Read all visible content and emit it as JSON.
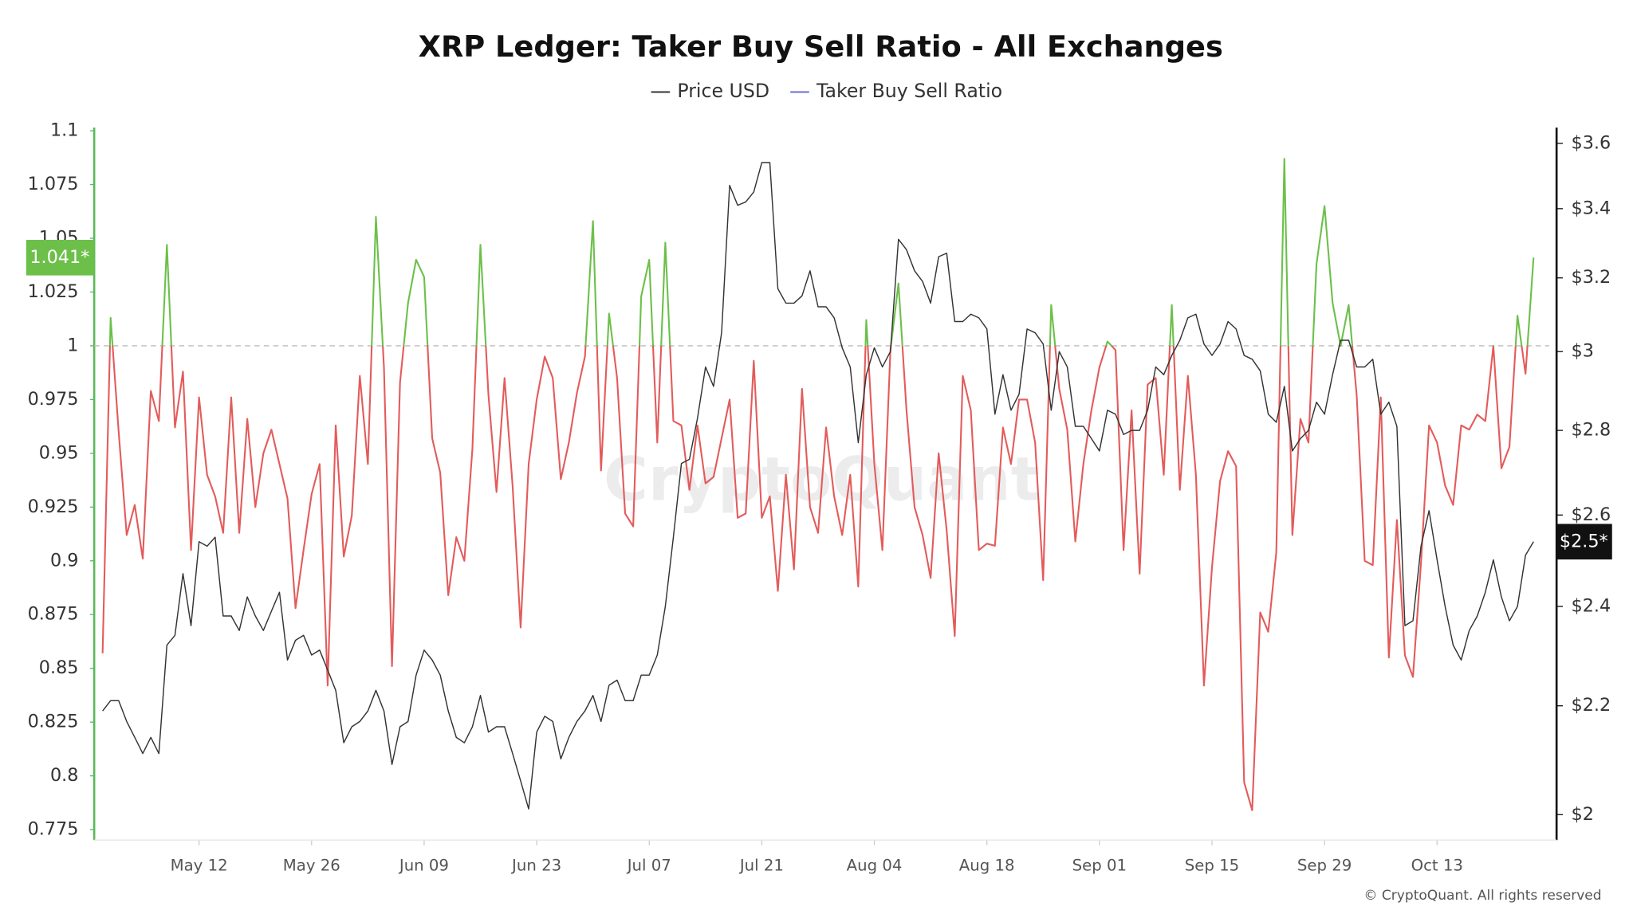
{
  "chart_data": {
    "type": "line",
    "title": "XRP Ledger: Taker Buy Sell Ratio - All Exchanges",
    "watermark": "CryptoQuant",
    "credit": "© CryptoQuant. All rights reserved",
    "x": [
      "Apr 30",
      "May 01",
      "May 02",
      "May 03",
      "May 04",
      "May 05",
      "May 06",
      "May 07",
      "May 08",
      "May 09",
      "May 10",
      "May 11",
      "May 12",
      "May 13",
      "May 14",
      "May 15",
      "May 16",
      "May 17",
      "May 18",
      "May 19",
      "May 20",
      "May 21",
      "May 22",
      "May 23",
      "May 24",
      "May 25",
      "May 26",
      "May 27",
      "May 28",
      "May 29",
      "May 30",
      "May 31",
      "Jun 01",
      "Jun 02",
      "Jun 03",
      "Jun 04",
      "Jun 05",
      "Jun 06",
      "Jun 07",
      "Jun 08",
      "Jun 09",
      "Jun 10",
      "Jun 11",
      "Jun 12",
      "Jun 13",
      "Jun 14",
      "Jun 15",
      "Jun 16",
      "Jun 17",
      "Jun 18",
      "Jun 19",
      "Jun 20",
      "Jun 21",
      "Jun 22",
      "Jun 23",
      "Jun 24",
      "Jun 25",
      "Jun 26",
      "Jun 27",
      "Jun 28",
      "Jun 29",
      "Jun 30",
      "Jul 01",
      "Jul 02",
      "Jul 03",
      "Jul 04",
      "Jul 05",
      "Jul 06",
      "Jul 07",
      "Jul 08",
      "Jul 09",
      "Jul 10",
      "Jul 11",
      "Jul 12",
      "Jul 13",
      "Jul 14",
      "Jul 15",
      "Jul 16",
      "Jul 17",
      "Jul 18",
      "Jul 19",
      "Jul 20",
      "Jul 21",
      "Jul 22",
      "Jul 23",
      "Jul 24",
      "Jul 25",
      "Jul 26",
      "Jul 27",
      "Jul 28",
      "Jul 29",
      "Jul 30",
      "Jul 31",
      "Aug 01",
      "Aug 02",
      "Aug 03",
      "Aug 04",
      "Aug 05",
      "Aug 06",
      "Aug 07",
      "Aug 08",
      "Aug 09",
      "Aug 10",
      "Aug 11",
      "Aug 12",
      "Aug 13",
      "Aug 14",
      "Aug 15",
      "Aug 16",
      "Aug 17",
      "Aug 18",
      "Aug 19",
      "Aug 20",
      "Aug 21",
      "Aug 22",
      "Aug 23",
      "Aug 24",
      "Aug 25",
      "Aug 26",
      "Aug 27",
      "Aug 28",
      "Aug 29",
      "Aug 30",
      "Aug 31",
      "Sep 01",
      "Sep 02",
      "Sep 03",
      "Sep 04",
      "Sep 05",
      "Sep 06",
      "Sep 07",
      "Sep 08",
      "Sep 09",
      "Sep 10",
      "Sep 11",
      "Sep 12",
      "Sep 13",
      "Sep 14",
      "Sep 15",
      "Sep 16",
      "Sep 17",
      "Sep 18",
      "Sep 19",
      "Sep 20",
      "Sep 21",
      "Sep 22",
      "Sep 23",
      "Sep 24",
      "Sep 25",
      "Sep 26",
      "Sep 27",
      "Sep 28",
      "Sep 29",
      "Sep 30",
      "Oct 01",
      "Oct 02",
      "Oct 03",
      "Oct 04",
      "Oct 05",
      "Oct 06",
      "Oct 07",
      "Oct 08",
      "Oct 09",
      "Oct 10",
      "Oct 11",
      "Oct 12",
      "Oct 13",
      "Oct 14",
      "Oct 15",
      "Oct 16",
      "Oct 17",
      "Oct 18",
      "Oct 19",
      "Oct 20",
      "Oct 21",
      "Oct 22",
      "Oct 23",
      "Oct 24",
      "Oct 25"
    ],
    "xticks": [
      "May 12",
      "May 26",
      "Jun 09",
      "Jun 23",
      "Jul 07",
      "Jul 21",
      "Aug 04",
      "Aug 18",
      "Sep 01",
      "Sep 15",
      "Sep 29",
      "Oct 13"
    ],
    "series": [
      {
        "name": "Price USD",
        "color": "#333333",
        "axis": "y2",
        "last_label": "$2.5*",
        "values": [
          2.19,
          2.21,
          2.21,
          2.17,
          2.14,
          2.11,
          2.14,
          2.11,
          2.32,
          2.34,
          2.47,
          2.36,
          2.54,
          2.53,
          2.55,
          2.38,
          2.38,
          2.35,
          2.42,
          2.38,
          2.35,
          2.39,
          2.43,
          2.29,
          2.33,
          2.34,
          2.3,
          2.31,
          2.27,
          2.23,
          2.13,
          2.16,
          2.17,
          2.19,
          2.23,
          2.19,
          2.09,
          2.16,
          2.17,
          2.26,
          2.31,
          2.29,
          2.26,
          2.19,
          2.14,
          2.13,
          2.16,
          2.22,
          2.15,
          2.16,
          2.16,
          2.11,
          2.06,
          2.01,
          2.15,
          2.18,
          2.17,
          2.1,
          2.14,
          2.17,
          2.19,
          2.22,
          2.17,
          2.24,
          2.25,
          2.21,
          2.21,
          2.26,
          2.26,
          2.3,
          2.4,
          2.55,
          2.72,
          2.73,
          2.83,
          2.96,
          2.91,
          3.05,
          3.47,
          3.41,
          3.42,
          3.45,
          3.54,
          3.54,
          3.17,
          3.13,
          3.13,
          3.15,
          3.22,
          3.12,
          3.12,
          3.09,
          3.01,
          2.96,
          2.77,
          2.94,
          3.01,
          2.96,
          3.0,
          3.31,
          3.28,
          3.22,
          3.19,
          3.13,
          3.26,
          3.27,
          3.08,
          3.08,
          3.1,
          3.09,
          3.06,
          2.84,
          2.94,
          2.85,
          2.89,
          3.06,
          3.05,
          3.02,
          2.85,
          3.0,
          2.96,
          2.81,
          2.81,
          2.78,
          2.75,
          2.85,
          2.84,
          2.79,
          2.8,
          2.8,
          2.85,
          2.96,
          2.94,
          2.99,
          3.03,
          3.09,
          3.1,
          3.02,
          2.99,
          3.02,
          3.08,
          3.06,
          2.99,
          2.98,
          2.95,
          2.84,
          2.82,
          2.91,
          2.75,
          2.78,
          2.8,
          2.87,
          2.84,
          2.94,
          3.03,
          3.03,
          2.96,
          2.96,
          2.98,
          2.84,
          2.87,
          2.81,
          2.36,
          2.37,
          2.53,
          2.61,
          2.5,
          2.4,
          2.32,
          2.29,
          2.35,
          2.38,
          2.43,
          2.5,
          2.42,
          2.37,
          2.4,
          2.51,
          2.54
        ]
      },
      {
        "name": "Taker Buy Sell Ratio",
        "color": "#6b6bd6",
        "color_above": "#6cc04a",
        "color_below": "#e35b5b",
        "threshold": 1,
        "last_label": "1.041*",
        "values": [
          0.857,
          1.013,
          0.96,
          0.912,
          0.926,
          0.901,
          0.979,
          0.965,
          1.047,
          0.962,
          0.988,
          0.905,
          0.976,
          0.94,
          0.93,
          0.913,
          0.976,
          0.913,
          0.966,
          0.925,
          0.95,
          0.961,
          0.945,
          0.929,
          0.878,
          0.905,
          0.931,
          0.945,
          0.842,
          0.963,
          0.902,
          0.921,
          0.986,
          0.945,
          1.06,
          0.99,
          0.851,
          0.983,
          1.02,
          1.04,
          1.032,
          0.957,
          0.941,
          0.884,
          0.911,
          0.9,
          0.952,
          1.047,
          0.977,
          0.932,
          0.985,
          0.935,
          0.869,
          0.945,
          0.975,
          0.995,
          0.985,
          0.938,
          0.955,
          0.978,
          0.995,
          1.058,
          0.942,
          1.015,
          0.985,
          0.922,
          0.916,
          1.023,
          1.04,
          0.955,
          1.048,
          0.965,
          0.963,
          0.933,
          0.963,
          0.936,
          0.939,
          0.957,
          0.975,
          0.92,
          0.922,
          0.993,
          0.92,
          0.93,
          0.886,
          0.94,
          0.896,
          0.98,
          0.925,
          0.913,
          0.962,
          0.93,
          0.912,
          0.94,
          0.888,
          1.012,
          0.945,
          0.905,
          0.998,
          1.029,
          0.97,
          0.925,
          0.912,
          0.892,
          0.95,
          0.914,
          0.865,
          0.986,
          0.97,
          0.905,
          0.908,
          0.907,
          0.962,
          0.945,
          0.975,
          0.975,
          0.955,
          0.891,
          1.019,
          0.98,
          0.961,
          0.909,
          0.945,
          0.97,
          0.99,
          1.002,
          0.998,
          0.905,
          0.97,
          0.894,
          0.982,
          0.985,
          0.94,
          1.019,
          0.933,
          0.986,
          0.94,
          0.842,
          0.897,
          0.937,
          0.951,
          0.944,
          0.797,
          0.784,
          0.876,
          0.867,
          0.904,
          1.087,
          0.912,
          0.966,
          0.955,
          1.038,
          1.065,
          1.02,
          1.0,
          1.019,
          0.977,
          0.9,
          0.898,
          0.976,
          0.855,
          0.919,
          0.856,
          0.846,
          0.899,
          0.963,
          0.955,
          0.935,
          0.926,
          0.963,
          0.961,
          0.968,
          0.965,
          1.0,
          0.943,
          0.953,
          1.014,
          0.987,
          1.041
        ]
      }
    ],
    "ylim": [
      0.775,
      1.1
    ],
    "yticks": [
      0.775,
      0.8,
      0.825,
      0.85,
      0.875,
      0.9,
      0.925,
      0.95,
      0.975,
      1,
      1.025,
      1.05,
      1.075,
      1.1
    ],
    "y2lim": [
      1.974,
      3.64
    ],
    "y2log": true,
    "y2ticks": [
      {
        "value": 2,
        "label": "$2"
      },
      {
        "value": 2.2,
        "label": "$2.2"
      },
      {
        "value": 2.4,
        "label": "$2.4"
      },
      {
        "value": 2.6,
        "label": "$2.6"
      },
      {
        "value": 2.8,
        "label": "$2.8"
      },
      {
        "value": 3,
        "label": "$3"
      },
      {
        "value": 3.2,
        "label": "$3.2"
      },
      {
        "value": 3.4,
        "label": "$3.4"
      },
      {
        "value": 3.6,
        "label": "$3.6"
      }
    ],
    "grid": false,
    "legend": "top"
  }
}
